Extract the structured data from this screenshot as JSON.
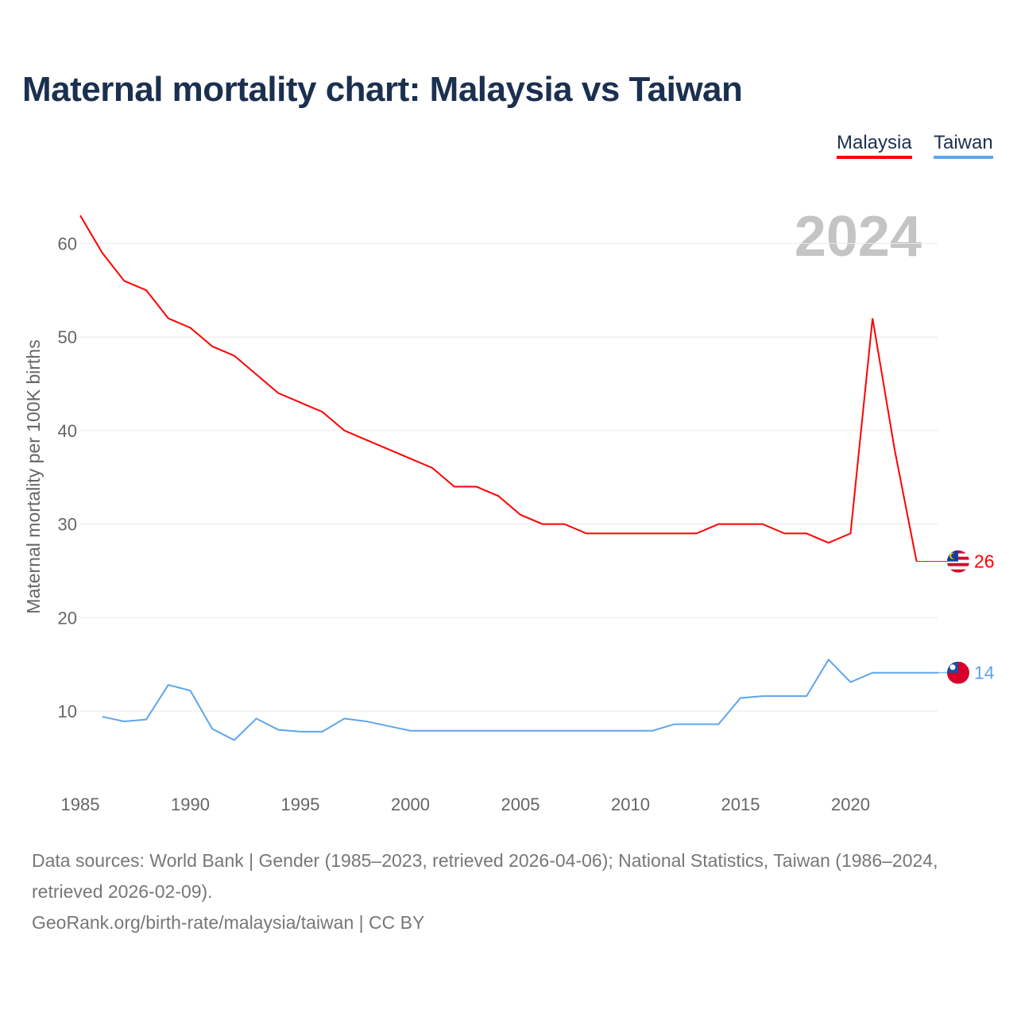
{
  "title": "Maternal mortality chart: Malaysia vs Taiwan",
  "legend": [
    "Malaysia",
    "Taiwan"
  ],
  "year_label": "2024",
  "footer": {
    "sources": "Data sources: World Bank | Gender (1985–2023, retrieved 2026-04-06); National Statistics, Taiwan (1986–2024, retrieved 2026-02-09).",
    "credit": "GeoRank.org/birth-rate/malaysia/taiwan | CC BY"
  },
  "chart_data": {
    "type": "line",
    "title": "Maternal mortality chart: Malaysia vs Taiwan",
    "xlabel": "",
    "ylabel": "Maternal mortality per 100K births",
    "xlim": [
      1985,
      2024
    ],
    "ylim": [
      3,
      64
    ],
    "xticks": [
      1985,
      1990,
      1995,
      2000,
      2005,
      2010,
      2015,
      2020
    ],
    "yticks": [
      10,
      20,
      30,
      40,
      50,
      60
    ],
    "grid": true,
    "legend_position": "top-right",
    "series": [
      {
        "name": "Malaysia",
        "color": "#ff0000",
        "end_label": "26",
        "flag": "malaysia-flag",
        "x": [
          1985,
          1986,
          1987,
          1988,
          1989,
          1990,
          1991,
          1992,
          1993,
          1994,
          1995,
          1996,
          1997,
          1998,
          1999,
          2000,
          2001,
          2002,
          2003,
          2004,
          2005,
          2006,
          2007,
          2008,
          2009,
          2010,
          2011,
          2012,
          2013,
          2014,
          2015,
          2016,
          2017,
          2018,
          2019,
          2020,
          2021,
          2022,
          2023
        ],
        "values": [
          63,
          59,
          56,
          55,
          52,
          51,
          49,
          48,
          46,
          44,
          43,
          42,
          40,
          39,
          38,
          37,
          36,
          34,
          34,
          33,
          31,
          30,
          30,
          29,
          29,
          29,
          29,
          29,
          29,
          30,
          30,
          30,
          29,
          29,
          28,
          29,
          52,
          38,
          26
        ]
      },
      {
        "name": "Taiwan",
        "color": "#5da5ee",
        "end_label": "14",
        "flag": "taiwan-flag",
        "x": [
          1986,
          1987,
          1988,
          1989,
          1990,
          1991,
          1992,
          1993,
          1994,
          1995,
          1996,
          1997,
          1998,
          1999,
          2000,
          2001,
          2002,
          2003,
          2004,
          2005,
          2006,
          2007,
          2008,
          2009,
          2010,
          2011,
          2012,
          2013,
          2014,
          2015,
          2016,
          2017,
          2018,
          2019,
          2020,
          2021,
          2022,
          2023,
          2024
        ],
        "values": [
          9.4,
          8.9,
          9.1,
          12.8,
          12.2,
          8.1,
          6.9,
          9.2,
          8.0,
          7.8,
          7.8,
          9.2,
          8.9,
          8.4,
          7.9,
          7.9,
          7.9,
          7.9,
          7.9,
          7.9,
          7.9,
          7.9,
          7.9,
          7.9,
          7.9,
          7.9,
          8.6,
          8.6,
          8.6,
          11.4,
          11.6,
          11.6,
          11.6,
          15.5,
          13.1,
          14.1,
          14.1,
          14.1,
          14.1
        ]
      }
    ]
  }
}
